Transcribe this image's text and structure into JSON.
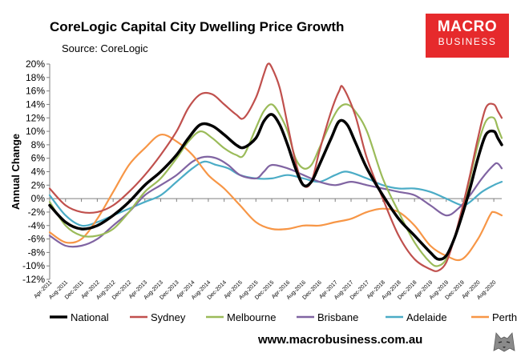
{
  "header": {
    "title": "CoreLogic Capital City Dwelling Price Growth",
    "subtitle": "Source: CoreLogic"
  },
  "logo": {
    "line1": "MACRO",
    "line2": "BUSINESS"
  },
  "footer": {
    "website": "www.macrobusiness.com.au"
  },
  "colors": {
    "National": "#000000",
    "Sydney": "#c0504d",
    "Melbourne": "#9bbb59",
    "Brisbane": "#8064a2",
    "Adelaide": "#4bacc6",
    "Perth": "#f79646",
    "logo_bg": "#e62a2c"
  },
  "chart_data": {
    "type": "line",
    "title": "CoreLogic Capital City Dwelling Price Growth",
    "xlabel": "",
    "ylabel": "Annual Change",
    "ylim": [
      -12,
      20
    ],
    "yticks": [
      -12,
      -10,
      -8,
      -6,
      -4,
      -2,
      0,
      2,
      4,
      6,
      8,
      10,
      12,
      14,
      16,
      18,
      20
    ],
    "ytick_labels": [
      "-12%",
      "-10%",
      "-8%",
      "-6%",
      "-4%",
      "-2%",
      "0%",
      "2%",
      "4%",
      "6%",
      "8%",
      "10%",
      "12%",
      "14%",
      "16%",
      "18%",
      "20%"
    ],
    "xticks": [
      "Apr-2011",
      "Aug-2011",
      "Dec-2011",
      "Apr-2012",
      "Aug-2012",
      "Dec-2012",
      "Apr-2013",
      "Aug-2013",
      "Dec-2013",
      "Apr-2014",
      "Aug-2014",
      "Dec-2014",
      "Apr-2015",
      "Aug-2015",
      "Dec-2015",
      "Apr-2016",
      "Aug-2016",
      "Dec-2016",
      "Apr-2017",
      "Aug-2017",
      "Dec-2017",
      "Apr-2018",
      "Aug-2018",
      "Dec-2018",
      "Apr-2019",
      "Aug-2019",
      "Dec-2019",
      "Apr-2020",
      "Aug-2020"
    ],
    "x_range": [
      "Apr-2011",
      "Oct-2020"
    ],
    "legend_position": "bottom",
    "grid": false,
    "series": [
      {
        "name": "National",
        "points": [
          [
            "Apr-2011",
            -1.0
          ],
          [
            "Aug-2011",
            -3.5
          ],
          [
            "Dec-2011",
            -4.5
          ],
          [
            "Apr-2012",
            -4.0
          ],
          [
            "Aug-2012",
            -2.5
          ],
          [
            "Dec-2012",
            -0.5
          ],
          [
            "Apr-2013",
            2.0
          ],
          [
            "Aug-2013",
            4.0
          ],
          [
            "Dec-2013",
            6.5
          ],
          [
            "Mar-2014",
            9.0
          ],
          [
            "Jun-2014",
            11.0
          ],
          [
            "Sep-2014",
            10.8
          ],
          [
            "Dec-2014",
            9.5
          ],
          [
            "Mar-2015",
            8.0
          ],
          [
            "May-2015",
            7.6
          ],
          [
            "Aug-2015",
            9.0
          ],
          [
            "Oct-2015",
            11.5
          ],
          [
            "Dec-2015",
            12.5
          ],
          [
            "Feb-2016",
            11.0
          ],
          [
            "Apr-2016",
            8.0
          ],
          [
            "Jun-2016",
            4.5
          ],
          [
            "Aug-2016",
            2.0
          ],
          [
            "Oct-2016",
            2.5
          ],
          [
            "Dec-2016",
            5.0
          ],
          [
            "Mar-2017",
            9.0
          ],
          [
            "May-2017",
            11.5
          ],
          [
            "Jul-2017",
            11.0
          ],
          [
            "Sep-2017",
            8.5
          ],
          [
            "Dec-2017",
            4.5
          ],
          [
            "Apr-2018",
            0.5
          ],
          [
            "Aug-2018",
            -3.0
          ],
          [
            "Dec-2018",
            -5.5
          ],
          [
            "Apr-2019",
            -8.0
          ],
          [
            "Jun-2019",
            -9.0
          ],
          [
            "Aug-2019",
            -8.5
          ],
          [
            "Oct-2019",
            -6.0
          ],
          [
            "Dec-2019",
            -2.5
          ],
          [
            "Feb-2020",
            1.5
          ],
          [
            "Apr-2020",
            6.0
          ],
          [
            "Jun-2020",
            9.5
          ],
          [
            "Aug-2020",
            10.0
          ],
          [
            "Sep-2020",
            9.0
          ],
          [
            "Oct-2020",
            8.0
          ]
        ]
      },
      {
        "name": "Sydney",
        "points": [
          [
            "Apr-2011",
            1.5
          ],
          [
            "Aug-2011",
            -1.0
          ],
          [
            "Dec-2011",
            -2.0
          ],
          [
            "Apr-2012",
            -2.0
          ],
          [
            "Aug-2012",
            -1.0
          ],
          [
            "Dec-2012",
            1.0
          ],
          [
            "Apr-2013",
            3.5
          ],
          [
            "Aug-2013",
            6.5
          ],
          [
            "Dec-2013",
            10.0
          ],
          [
            "Mar-2014",
            13.5
          ],
          [
            "Jun-2014",
            15.5
          ],
          [
            "Sep-2014",
            15.5
          ],
          [
            "Dec-2014",
            14.0
          ],
          [
            "Mar-2015",
            12.5
          ],
          [
            "May-2015",
            12.0
          ],
          [
            "Aug-2015",
            15.0
          ],
          [
            "Oct-2015",
            18.5
          ],
          [
            "Nov-2015",
            20.0
          ],
          [
            "Dec-2015",
            19.5
          ],
          [
            "Feb-2016",
            16.5
          ],
          [
            "Apr-2016",
            11.0
          ],
          [
            "Jun-2016",
            5.5
          ],
          [
            "Aug-2016",
            2.0
          ],
          [
            "Oct-2016",
            2.5
          ],
          [
            "Dec-2016",
            7.0
          ],
          [
            "Mar-2017",
            13.0
          ],
          [
            "May-2017",
            16.0
          ],
          [
            "Jun-2017",
            16.5
          ],
          [
            "Sep-2017",
            12.5
          ],
          [
            "Dec-2017",
            6.0
          ],
          [
            "Apr-2018",
            0.0
          ],
          [
            "Aug-2018",
            -5.5
          ],
          [
            "Dec-2018",
            -9.0
          ],
          [
            "Apr-2019",
            -10.5
          ],
          [
            "Jun-2019",
            -10.7
          ],
          [
            "Aug-2019",
            -9.5
          ],
          [
            "Oct-2019",
            -6.0
          ],
          [
            "Dec-2019",
            -1.5
          ],
          [
            "Feb-2020",
            3.5
          ],
          [
            "Apr-2020",
            9.0
          ],
          [
            "Jun-2020",
            13.5
          ],
          [
            "Aug-2020",
            14.0
          ],
          [
            "Sep-2020",
            13.0
          ],
          [
            "Oct-2020",
            12.0
          ]
        ]
      },
      {
        "name": "Melbourne",
        "points": [
          [
            "Apr-2011",
            -0.5
          ],
          [
            "Aug-2011",
            -4.0
          ],
          [
            "Dec-2011",
            -5.5
          ],
          [
            "Apr-2012",
            -5.5
          ],
          [
            "Aug-2012",
            -4.5
          ],
          [
            "Dec-2012",
            -2.0
          ],
          [
            "Apr-2013",
            1.0
          ],
          [
            "Aug-2013",
            3.0
          ],
          [
            "Dec-2013",
            6.0
          ],
          [
            "Mar-2014",
            8.5
          ],
          [
            "Jun-2014",
            10.0
          ],
          [
            "Sep-2014",
            9.0
          ],
          [
            "Dec-2014",
            7.5
          ],
          [
            "Mar-2015",
            6.5
          ],
          [
            "May-2015",
            6.5
          ],
          [
            "Aug-2015",
            10.5
          ],
          [
            "Oct-2015",
            13.0
          ],
          [
            "Dec-2015",
            14.0
          ],
          [
            "Feb-2016",
            12.5
          ],
          [
            "Apr-2016",
            10.0
          ],
          [
            "Jun-2016",
            6.0
          ],
          [
            "Aug-2016",
            4.5
          ],
          [
            "Oct-2016",
            5.0
          ],
          [
            "Dec-2016",
            7.5
          ],
          [
            "Mar-2017",
            11.5
          ],
          [
            "May-2017",
            13.5
          ],
          [
            "Jul-2017",
            14.0
          ],
          [
            "Sep-2017",
            13.0
          ],
          [
            "Dec-2017",
            10.0
          ],
          [
            "Apr-2018",
            3.0
          ],
          [
            "Aug-2018",
            -2.0
          ],
          [
            "Dec-2018",
            -6.5
          ],
          [
            "Apr-2019",
            -9.5
          ],
          [
            "Jun-2019",
            -10.0
          ],
          [
            "Aug-2019",
            -9.0
          ],
          [
            "Oct-2019",
            -6.0
          ],
          [
            "Dec-2019",
            -2.0
          ],
          [
            "Feb-2020",
            3.0
          ],
          [
            "Apr-2020",
            8.0
          ],
          [
            "Jun-2020",
            11.5
          ],
          [
            "Aug-2020",
            12.0
          ],
          [
            "Sep-2020",
            10.5
          ],
          [
            "Oct-2020",
            9.0
          ]
        ]
      },
      {
        "name": "Brisbane",
        "points": [
          [
            "Apr-2011",
            -5.5
          ],
          [
            "Aug-2011",
            -7.0
          ],
          [
            "Dec-2011",
            -7.0
          ],
          [
            "Apr-2012",
            -6.0
          ],
          [
            "Aug-2012",
            -4.0
          ],
          [
            "Dec-2012",
            -2.0
          ],
          [
            "Apr-2013",
            0.5
          ],
          [
            "Aug-2013",
            2.0
          ],
          [
            "Dec-2013",
            3.5
          ],
          [
            "Apr-2014",
            5.5
          ],
          [
            "Jul-2014",
            6.2
          ],
          [
            "Oct-2014",
            6.0
          ],
          [
            "Jan-2015",
            5.0
          ],
          [
            "Apr-2015",
            3.5
          ],
          [
            "Aug-2015",
            3.0
          ],
          [
            "Oct-2015",
            4.0
          ],
          [
            "Dec-2015",
            5.0
          ],
          [
            "Apr-2016",
            4.5
          ],
          [
            "Aug-2016",
            3.5
          ],
          [
            "Dec-2016",
            2.5
          ],
          [
            "Apr-2017",
            2.0
          ],
          [
            "Aug-2017",
            2.5
          ],
          [
            "Dec-2017",
            2.0
          ],
          [
            "Apr-2018",
            1.5
          ],
          [
            "Aug-2018",
            1.0
          ],
          [
            "Dec-2018",
            0.5
          ],
          [
            "Apr-2019",
            -1.0
          ],
          [
            "Aug-2019",
            -2.5
          ],
          [
            "Nov-2019",
            -1.5
          ],
          [
            "Feb-2020",
            0.5
          ],
          [
            "May-2020",
            3.0
          ],
          [
            "Aug-2020",
            5.0
          ],
          [
            "Sep-2020",
            5.2
          ],
          [
            "Oct-2020",
            4.5
          ]
        ]
      },
      {
        "name": "Adelaide",
        "points": [
          [
            "Apr-2011",
            0.5
          ],
          [
            "Aug-2011",
            -2.5
          ],
          [
            "Dec-2011",
            -4.0
          ],
          [
            "Apr-2012",
            -3.5
          ],
          [
            "Aug-2012",
            -2.5
          ],
          [
            "Dec-2012",
            -1.5
          ],
          [
            "Apr-2013",
            -0.5
          ],
          [
            "Aug-2013",
            0.5
          ],
          [
            "Dec-2013",
            2.5
          ],
          [
            "Apr-2014",
            4.5
          ],
          [
            "Jul-2014",
            5.5
          ],
          [
            "Oct-2014",
            5.0
          ],
          [
            "Jan-2015",
            4.5
          ],
          [
            "Apr-2015",
            3.5
          ],
          [
            "Aug-2015",
            3.0
          ],
          [
            "Dec-2015",
            3.0
          ],
          [
            "Apr-2016",
            3.5
          ],
          [
            "Aug-2016",
            3.0
          ],
          [
            "Dec-2016",
            2.5
          ],
          [
            "Apr-2017",
            3.5
          ],
          [
            "Jul-2017",
            4.0
          ],
          [
            "Dec-2017",
            3.0
          ],
          [
            "Apr-2018",
            2.0
          ],
          [
            "Aug-2018",
            1.5
          ],
          [
            "Dec-2018",
            1.5
          ],
          [
            "Apr-2019",
            1.0
          ],
          [
            "Aug-2019",
            0.0
          ],
          [
            "Dec-2019",
            -1.0
          ],
          [
            "Feb-2020",
            -0.5
          ],
          [
            "May-2020",
            1.0
          ],
          [
            "Aug-2020",
            2.0
          ],
          [
            "Oct-2020",
            2.5
          ]
        ]
      },
      {
        "name": "Perth",
        "points": [
          [
            "Apr-2011",
            -5.0
          ],
          [
            "Aug-2011",
            -6.5
          ],
          [
            "Dec-2011",
            -6.0
          ],
          [
            "Apr-2012",
            -3.0
          ],
          [
            "Aug-2012",
            1.0
          ],
          [
            "Dec-2012",
            5.0
          ],
          [
            "Apr-2013",
            7.5
          ],
          [
            "Aug-2013",
            9.5
          ],
          [
            "Dec-2013",
            8.5
          ],
          [
            "Apr-2014",
            6.5
          ],
          [
            "Aug-2014",
            3.5
          ],
          [
            "Dec-2014",
            1.5
          ],
          [
            "Apr-2015",
            -1.0
          ],
          [
            "Aug-2015",
            -3.5
          ],
          [
            "Dec-2015",
            -4.5
          ],
          [
            "Apr-2016",
            -4.5
          ],
          [
            "Aug-2016",
            -4.0
          ],
          [
            "Dec-2016",
            -4.0
          ],
          [
            "Apr-2017",
            -3.5
          ],
          [
            "Aug-2017",
            -3.0
          ],
          [
            "Dec-2017",
            -2.0
          ],
          [
            "Apr-2018",
            -1.5
          ],
          [
            "Aug-2018",
            -2.0
          ],
          [
            "Dec-2018",
            -4.0
          ],
          [
            "Apr-2019",
            -7.0
          ],
          [
            "Aug-2019",
            -8.5
          ],
          [
            "Dec-2019",
            -9.0
          ],
          [
            "Apr-2020",
            -6.0
          ],
          [
            "Jul-2020",
            -2.5
          ],
          [
            "Aug-2020",
            -2.0
          ],
          [
            "Oct-2020",
            -2.5
          ]
        ]
      }
    ]
  }
}
